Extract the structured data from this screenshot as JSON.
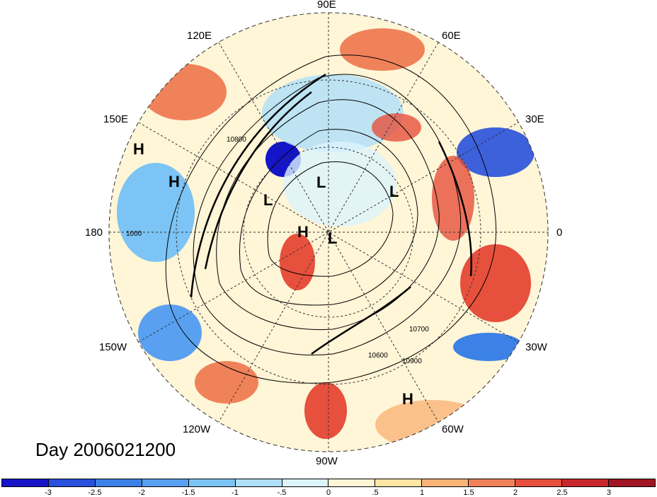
{
  "map": {
    "title": "Day 2006021200",
    "projection": "polar stereographic, north pole",
    "longitude_labels": {
      "e90": "90E",
      "e120": "120E",
      "e60": "60E",
      "e150": "150E",
      "e30": "30E",
      "d180": "180",
      "d0": "0",
      "w150": "150W",
      "w30": "30W",
      "w120": "120W",
      "w60": "60W",
      "w90": "90W"
    },
    "pressure_centers": [
      {
        "label": "H",
        "lon": 150,
        "lat": 20
      },
      {
        "label": "H",
        "lon": 170,
        "lat": 35
      },
      {
        "label": "L",
        "lon": 145,
        "lat": 72
      },
      {
        "label": "L",
        "lon": 95,
        "lat": 75
      },
      {
        "label": "L",
        "lon": 45,
        "lat": 70
      },
      {
        "label": "H",
        "lon": 150,
        "lat": 85
      },
      {
        "label": "L",
        "lon": -120,
        "lat": 88
      },
      {
        "label": "H",
        "lon": -50,
        "lat": 25
      }
    ],
    "contour_labels": [
      "10700",
      "10900",
      "1000",
      "10800",
      "10600"
    ],
    "colors": {
      "land_outline": "#000000",
      "grid": "#333333"
    }
  },
  "colorbar": {
    "ticks": [
      "-3",
      "-2.5",
      "-2",
      "-1.5",
      "-1",
      "-.5",
      "0",
      ".5",
      "1",
      "1.5",
      "2",
      "2.5",
      "3"
    ],
    "colors": [
      "#1414c8",
      "#2850dc",
      "#3c82e6",
      "#5aa0f0",
      "#7cc4f5",
      "#aee0fa",
      "#dcf4fc",
      "#fff5d7",
      "#ffe6a5",
      "#fab478",
      "#f0825a",
      "#e6503c",
      "#c8282d",
      "#a01423"
    ]
  }
}
